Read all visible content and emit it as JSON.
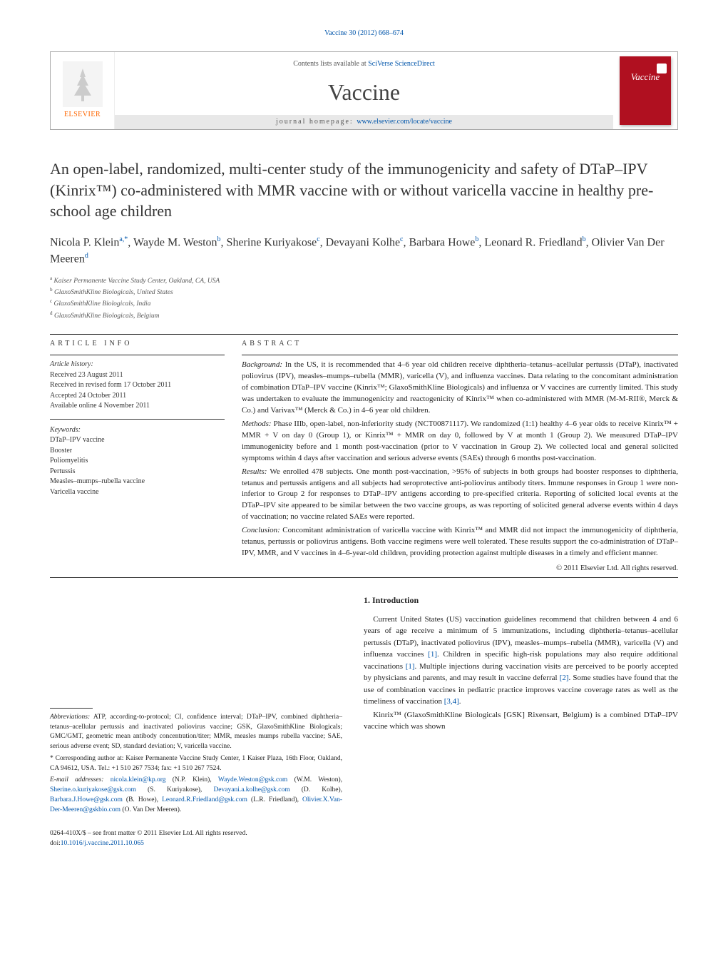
{
  "header": {
    "citation": "Vaccine 30 (2012) 668–674",
    "contents_prefix": "Contents lists available at ",
    "contents_link": "SciVerse ScienceDirect",
    "journal": "Vaccine",
    "homepage_prefix": "journal homepage: ",
    "homepage_link": "www.elsevier.com/locate/vaccine",
    "publisher_label": "ELSEVIER",
    "cover_label": "Vaccine"
  },
  "title": "An open-label, randomized, multi-center study of the immunogenicity and safety of DTaP–IPV (Kinrix™) co-administered with MMR vaccine with or without varicella vaccine in healthy pre-school age children",
  "authors_html": "Nicola P. Klein<sup>a,*</sup>, Wayde M. Weston<sup>b</sup>, Sherine Kuriyakose<sup>c</sup>, Devayani Kolhe<sup>c</sup>, Barbara Howe<sup>b</sup>, Leonard R. Friedland<sup>b</sup>, Olivier Van Der Meeren<sup>d</sup>",
  "affiliations": [
    {
      "sup": "a",
      "text": "Kaiser Permanente Vaccine Study Center, Oakland, CA, USA"
    },
    {
      "sup": "b",
      "text": "GlaxoSmithKline Biologicals, United States"
    },
    {
      "sup": "c",
      "text": "GlaxoSmithKline Biologicals, India"
    },
    {
      "sup": "d",
      "text": "GlaxoSmithKline Biologicals, Belgium"
    }
  ],
  "info": {
    "label": "article info",
    "history_label": "Article history:",
    "history": [
      "Received 23 August 2011",
      "Received in revised form 17 October 2011",
      "Accepted 24 October 2011",
      "Available online 4 November 2011"
    ],
    "keywords_label": "Keywords:",
    "keywords": [
      "DTaP–IPV vaccine",
      "Booster",
      "Poliomyelitis",
      "Pertussis",
      "Measles–mumps–rubella vaccine",
      "Varicella vaccine"
    ]
  },
  "abstract": {
    "label": "abstract",
    "sections": [
      {
        "label": "Background:",
        "text": "In the US, it is recommended that 4–6 year old children receive diphtheria–tetanus–acellular pertussis (DTaP), inactivated poliovirus (IPV), measles–mumps–rubella (MMR), varicella (V), and influenza vaccines. Data relating to the concomitant administration of combination DTaP–IPV vaccine (Kinrix™; GlaxoSmithKline Biologicals) and influenza or V vaccines are currently limited. This study was undertaken to evaluate the immunogenicity and reactogenicity of Kinrix™ when co-administered with MMR (M-M-RII®, Merck & Co.) and Varivax™ (Merck & Co.) in 4–6 year old children."
      },
      {
        "label": "Methods:",
        "text": "Phase IIIb, open-label, non-inferiority study (NCT00871117). We randomized (1:1) healthy 4–6 year olds to receive Kinrix™ + MMR + V on day 0 (Group 1), or Kinrix™ + MMR on day 0, followed by V at month 1 (Group 2). We measured DTaP–IPV immunogenicity before and 1 month post-vaccination (prior to V vaccination in Group 2). We collected local and general solicited symptoms within 4 days after vaccination and serious adverse events (SAEs) through 6 months post-vaccination."
      },
      {
        "label": "Results:",
        "text": "We enrolled 478 subjects. One month post-vaccination, >95% of subjects in both groups had booster responses to diphtheria, tetanus and pertussis antigens and all subjects had seroprotective anti-poliovirus antibody titers. Immune responses in Group 1 were non-inferior to Group 2 for responses to DTaP–IPV antigens according to pre-specified criteria. Reporting of solicited local events at the DTaP–IPV site appeared to be similar between the two vaccine groups, as was reporting of solicited general adverse events within 4 days of vaccination; no vaccine related SAEs were reported."
      },
      {
        "label": "Conclusion:",
        "text": "Concomitant administration of varicella vaccine with Kinrix™ and MMR did not impact the immunogenicity of diphtheria, tetanus, pertussis or poliovirus antigens. Both vaccine regimens were well tolerated. These results support the co-administration of DTaP–IPV, MMR, and V vaccines in 4–6-year-old children, providing protection against multiple diseases in a timely and efficient manner."
      }
    ],
    "copyright": "© 2011 Elsevier Ltd. All rights reserved."
  },
  "footnotes": {
    "abbrev_label": "Abbreviations:",
    "abbrev_text": "ATP, according-to-protocol; CI, confidence interval; DTaP–IPV, combined diphtheria–tetanus–acellular pertussis and inactivated poliovirus vaccine; GSK, GlaxoSmithKline Biologicals; GMC/GMT, geometric mean antibody concentration/titer; MMR, measles mumps rubella vaccine; SAE, serious adverse event; SD, standard deviation; V, varicella vaccine.",
    "corr_marker": "*",
    "corr_text": "Corresponding author at: Kaiser Permanente Vaccine Study Center, 1 Kaiser Plaza, 16th Floor, Oakland, CA 94612, USA. Tel.: +1 510 267 7534; fax: +1 510 267 7524.",
    "email_label": "E-mail addresses:",
    "emails": [
      {
        "addr": "nicola.klein@kp.org",
        "who": "(N.P. Klein)"
      },
      {
        "addr": "Wayde.Weston@gsk.com",
        "who": "(W.M. Weston)"
      },
      {
        "addr": "Sherine.o.kuriyakose@gsk.com",
        "who": "(S. Kuriyakose)"
      },
      {
        "addr": "Devayani.a.kolhe@gsk.com",
        "who": "(D. Kolhe)"
      },
      {
        "addr": "Barbara.J.Howe@gsk.com",
        "who": "(B. Howe)"
      },
      {
        "addr": "Leonard.R.Friedland@gsk.com",
        "who": "(L.R. Friedland)"
      },
      {
        "addr": "Olivier.X.Van-Der-Meeren@gskbio.com",
        "who": "(O. Van Der Meeren)."
      }
    ]
  },
  "intro": {
    "heading": "1.  Introduction",
    "p1_pre": "Current United States (US) vaccination guidelines recommend that children between 4 and 6 years of age receive a minimum of 5 immunizations, including diphtheria–tetanus–acellular pertussis (DTaP), inactivated poliovirus (IPV), measles–mumps–rubella (MMR), varicella (V) and influenza vaccines ",
    "p1_ref1": "[1]",
    "p1_mid1": ". Children in specific high-risk populations may also require additional vaccinations ",
    "p1_ref2": "[1]",
    "p1_mid2": ". Multiple injections during vaccination visits are perceived to be poorly accepted by physicians and parents, and may result in vaccine deferral ",
    "p1_ref3": "[2]",
    "p1_mid3": ". Some studies have found that the use of combination vaccines in pediatric practice improves vaccine coverage rates as well as the timeliness of vaccination ",
    "p1_ref4": "[3,4]",
    "p1_post": ".",
    "p2": "Kinrix™ (GlaxoSmithKline Biologicals [GSK] Rixensart, Belgium) is a combined DTaP–IPV vaccine which was shown"
  },
  "doi": {
    "line1": "0264-410X/$ – see front matter © 2011 Elsevier Ltd. All rights reserved.",
    "line2_prefix": "doi:",
    "line2_link": "10.1016/j.vaccine.2011.10.065"
  },
  "colors": {
    "link": "#0055aa",
    "text": "#222222",
    "muted": "#555555",
    "orange": "#ff6600",
    "cover": "#b01020",
    "border": "#aaaaaa"
  }
}
